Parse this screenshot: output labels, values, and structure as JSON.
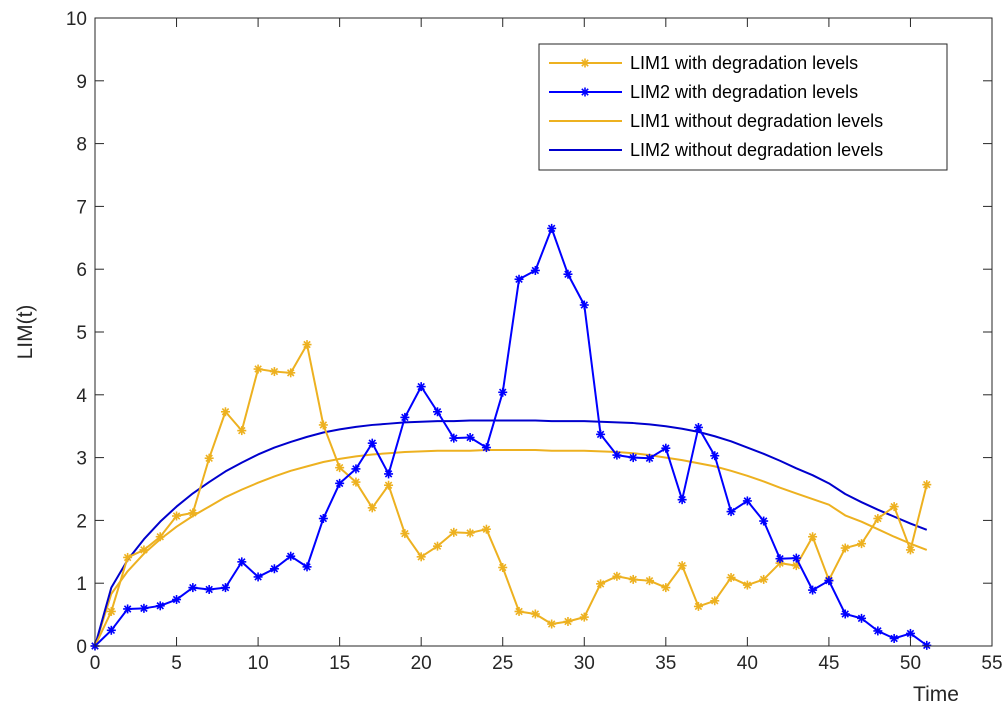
{
  "chart_data": {
    "type": "line",
    "title": "",
    "xlabel": "Time",
    "ylabel": "LIM(t)",
    "xlim": [
      0,
      55
    ],
    "ylim": [
      0,
      10
    ],
    "xticks": [
      0,
      5,
      10,
      15,
      20,
      25,
      30,
      35,
      40,
      45,
      50,
      55
    ],
    "yticks": [
      0,
      1,
      2,
      3,
      4,
      5,
      6,
      7,
      8,
      9,
      10
    ],
    "grid": false,
    "legend_position": "top-right",
    "series": [
      {
        "name": "LIM1 with degradation levels",
        "color": "#EDB120",
        "marker": "asterisk",
        "x": [
          0,
          1,
          2,
          3,
          4,
          5,
          6,
          7,
          8,
          9,
          10,
          11,
          12,
          13,
          14,
          15,
          16,
          17,
          18,
          19,
          20,
          21,
          22,
          23,
          24,
          25,
          26,
          27,
          28,
          29,
          30,
          31,
          32,
          33,
          34,
          35,
          36,
          37,
          38,
          39,
          40,
          41,
          42,
          43,
          44,
          45,
          46,
          47,
          48,
          49,
          50,
          51
        ],
        "y": [
          0,
          0.55,
          1.41,
          1.53,
          1.74,
          2.07,
          2.12,
          2.99,
          3.73,
          3.43,
          4.41,
          4.37,
          4.35,
          4.8,
          3.52,
          2.84,
          2.61,
          2.2,
          2.56,
          1.79,
          1.42,
          1.59,
          1.81,
          1.8,
          1.86,
          1.25,
          0.55,
          0.51,
          0.35,
          0.39,
          0.46,
          0.99,
          1.11,
          1.06,
          1.04,
          0.93,
          1.28,
          0.63,
          0.72,
          1.09,
          0.97,
          1.06,
          1.32,
          1.28,
          1.74,
          1.05,
          1.56,
          1.63,
          2.03,
          2.22,
          1.53,
          2.57
        ]
      },
      {
        "name": "LIM2 with degradation levels",
        "color": "#0000FF",
        "marker": "asterisk",
        "x": [
          0,
          1,
          2,
          3,
          4,
          5,
          6,
          7,
          8,
          9,
          10,
          11,
          12,
          13,
          14,
          15,
          16,
          17,
          18,
          19,
          20,
          21,
          22,
          23,
          24,
          25,
          26,
          27,
          28,
          29,
          30,
          31,
          32,
          33,
          34,
          35,
          36,
          37,
          38,
          39,
          40,
          41,
          42,
          43,
          44,
          45,
          46,
          47,
          48,
          49,
          50,
          51
        ],
        "y": [
          0,
          0.25,
          0.59,
          0.6,
          0.64,
          0.74,
          0.93,
          0.9,
          0.93,
          1.34,
          1.1,
          1.23,
          1.43,
          1.26,
          2.03,
          2.59,
          2.82,
          3.23,
          2.74,
          3.64,
          4.13,
          3.73,
          3.31,
          3.32,
          3.16,
          4.04,
          5.84,
          5.98,
          6.65,
          5.92,
          5.43,
          3.37,
          3.04,
          3.0,
          2.99,
          3.15,
          2.33,
          3.48,
          3.03,
          2.14,
          2.31,
          1.99,
          1.39,
          1.4,
          0.89,
          1.04,
          0.51,
          0.44,
          0.24,
          0.12,
          0.2,
          0.01
        ]
      },
      {
        "name": "LIM1 without degradation levels",
        "color": "#EDB120",
        "marker": "none",
        "x": [
          0,
          1,
          2,
          3,
          4,
          5,
          6,
          7,
          8,
          9,
          10,
          11,
          12,
          13,
          14,
          15,
          16,
          17,
          18,
          19,
          20,
          21,
          22,
          23,
          24,
          25,
          26,
          27,
          28,
          29,
          30,
          31,
          32,
          33,
          34,
          35,
          36,
          37,
          38,
          39,
          40,
          41,
          42,
          43,
          44,
          45,
          46,
          47,
          48,
          49,
          50,
          51
        ],
        "y": [
          0,
          0.83,
          1.19,
          1.47,
          1.7,
          1.9,
          2.07,
          2.22,
          2.37,
          2.49,
          2.6,
          2.7,
          2.79,
          2.86,
          2.93,
          2.98,
          3.02,
          3.05,
          3.07,
          3.09,
          3.1,
          3.11,
          3.11,
          3.11,
          3.12,
          3.12,
          3.12,
          3.12,
          3.11,
          3.11,
          3.11,
          3.1,
          3.09,
          3.07,
          3.04,
          3.0,
          2.96,
          2.91,
          2.86,
          2.79,
          2.71,
          2.62,
          2.52,
          2.43,
          2.34,
          2.25,
          2.08,
          1.98,
          1.86,
          1.74,
          1.63,
          1.53
        ]
      },
      {
        "name": "LIM2 without degradation levels",
        "color": "#0000CD",
        "marker": "none",
        "x": [
          0,
          1,
          2,
          3,
          4,
          5,
          6,
          7,
          8,
          9,
          10,
          11,
          12,
          13,
          14,
          15,
          16,
          17,
          18,
          19,
          20,
          21,
          22,
          23,
          24,
          25,
          26,
          27,
          28,
          29,
          30,
          31,
          32,
          33,
          34,
          35,
          36,
          37,
          38,
          39,
          40,
          41,
          42,
          43,
          44,
          45,
          46,
          47,
          48,
          49,
          50,
          51
        ],
        "y": [
          0,
          0.93,
          1.37,
          1.7,
          1.98,
          2.22,
          2.43,
          2.61,
          2.78,
          2.92,
          3.05,
          3.16,
          3.25,
          3.33,
          3.4,
          3.45,
          3.49,
          3.52,
          3.54,
          3.56,
          3.57,
          3.58,
          3.58,
          3.59,
          3.59,
          3.59,
          3.59,
          3.59,
          3.58,
          3.58,
          3.58,
          3.57,
          3.56,
          3.55,
          3.53,
          3.5,
          3.46,
          3.41,
          3.34,
          3.26,
          3.16,
          3.06,
          2.95,
          2.83,
          2.72,
          2.59,
          2.42,
          2.29,
          2.17,
          2.06,
          1.95,
          1.85
        ]
      }
    ]
  }
}
